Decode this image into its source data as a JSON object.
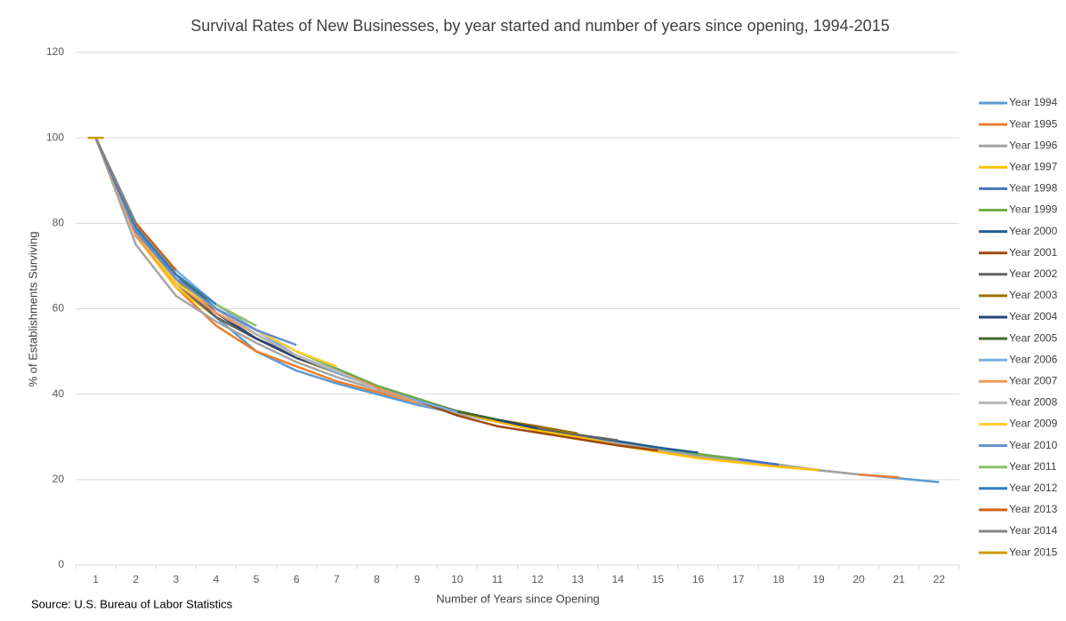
{
  "chart_data": {
    "type": "line",
    "title": "Survival Rates of New Businesses, by year started and number of years since opening, 1994-2015",
    "x_label": "Number of Years since Opening",
    "y_label": "% of Establishments Surviving",
    "source": "Source: U.S. Bureau of Labor Statistics",
    "categories": [
      "1",
      "2",
      "3",
      "4",
      "5",
      "6",
      "7",
      "8",
      "9",
      "10",
      "11",
      "12",
      "13",
      "14",
      "15",
      "16",
      "17",
      "18",
      "19",
      "20",
      "21",
      "22"
    ],
    "ylim": [
      0,
      120
    ],
    "yticks": [
      0,
      20,
      40,
      60,
      80,
      100,
      120
    ],
    "grid": true,
    "legend": "right",
    "series": [
      {
        "name": "Year 1994",
        "color": "#5b9bd5",
        "values": [
          100,
          77,
          66,
          58,
          50,
          45.5,
          42.5,
          40,
          37.5,
          35.5,
          33.5,
          31.5,
          30,
          28.5,
          27,
          25.5,
          24.5,
          23.5,
          22.2,
          21.2,
          20.3,
          19.4
        ]
      },
      {
        "name": "Year 1995",
        "color": "#ed7d31",
        "values": [
          100,
          78,
          65,
          56,
          50,
          46.5,
          43,
          40.5,
          38,
          35.5,
          33.5,
          31.5,
          30,
          28.5,
          27,
          25.5,
          24.5,
          23.5,
          22.2,
          21.2,
          20.5,
          null
        ]
      },
      {
        "name": "Year 1996",
        "color": "#a5a5a5",
        "values": [
          100,
          75,
          63,
          57,
          52,
          47.5,
          44,
          41,
          38,
          35.5,
          33.5,
          31.5,
          30,
          28.5,
          27,
          25.5,
          24.5,
          23.5,
          22.2,
          21.2,
          null,
          null
        ]
      },
      {
        "name": "Year 1997",
        "color": "#ffc000",
        "values": [
          100,
          77,
          65,
          58,
          53,
          48.5,
          45,
          41.5,
          38.5,
          36,
          33.5,
          31.5,
          30,
          28,
          26.5,
          25,
          24,
          23,
          22.2,
          null,
          null,
          null
        ]
      },
      {
        "name": "Year 1998",
        "color": "#4472c4",
        "values": [
          100,
          78,
          66,
          58,
          53,
          49,
          45,
          41.5,
          38.5,
          36,
          34,
          32,
          30.5,
          29,
          27.5,
          26,
          24.8,
          23.5,
          null,
          null,
          null,
          null
        ]
      },
      {
        "name": "Year 1999",
        "color": "#70ad47",
        "values": [
          100,
          79,
          67,
          60,
          55,
          50,
          46,
          42,
          39,
          36,
          34,
          32,
          30.5,
          29,
          27.5,
          26,
          24.8,
          null,
          null,
          null,
          null,
          null
        ]
      },
      {
        "name": "Year 2000",
        "color": "#255e91",
        "values": [
          100,
          79,
          68,
          60,
          54,
          49,
          45.5,
          41.5,
          38.5,
          36,
          34,
          32,
          30.5,
          29,
          27.5,
          26.3,
          null,
          null,
          null,
          null,
          null,
          null
        ]
      },
      {
        "name": "Year 2001",
        "color": "#9e480e",
        "values": [
          100,
          79,
          67,
          58,
          53,
          48.5,
          45,
          41.5,
          38.5,
          35,
          32.5,
          31,
          29.5,
          28,
          26.8,
          null,
          null,
          null,
          null,
          null,
          null,
          null
        ]
      },
      {
        "name": "Year 2002",
        "color": "#636363",
        "values": [
          100,
          78,
          66,
          58,
          53,
          48.5,
          45,
          41.5,
          38.5,
          36,
          34,
          32,
          30.5,
          29.2,
          null,
          null,
          null,
          null,
          null,
          null,
          null,
          null
        ]
      },
      {
        "name": "Year 2003",
        "color": "#997300",
        "values": [
          100,
          79,
          67,
          59,
          53,
          48.5,
          45,
          41.5,
          38.5,
          36,
          34,
          32.5,
          30.8,
          null,
          null,
          null,
          null,
          null,
          null,
          null,
          null,
          null
        ]
      },
      {
        "name": "Year 2004",
        "color": "#264478",
        "values": [
          100,
          80,
          68,
          59,
          53,
          48.5,
          45.5,
          41.5,
          38.5,
          36,
          34,
          32,
          null,
          null,
          null,
          null,
          null,
          null,
          null,
          null,
          null,
          null
        ]
      },
      {
        "name": "Year 2005",
        "color": "#43682b",
        "values": [
          100,
          79,
          68,
          60,
          54,
          49,
          45.5,
          41.5,
          38.5,
          36,
          34,
          null,
          null,
          null,
          null,
          null,
          null,
          null,
          null,
          null,
          null,
          null
        ]
      },
      {
        "name": "Year 2006",
        "color": "#7cafdd",
        "values": [
          100,
          79,
          69,
          61,
          55,
          49,
          45,
          41.5,
          38.5,
          35.8,
          null,
          null,
          null,
          null,
          null,
          null,
          null,
          null,
          null,
          null,
          null,
          null
        ]
      },
      {
        "name": "Year 2007",
        "color": "#f1975a",
        "values": [
          100,
          77,
          66,
          59,
          54,
          49,
          45.5,
          41.5,
          38,
          null,
          null,
          null,
          null,
          null,
          null,
          null,
          null,
          null,
          null,
          null,
          null,
          null
        ]
      },
      {
        "name": "Year 2008",
        "color": "#b7b7b7",
        "values": [
          100,
          78,
          67,
          60,
          54,
          49,
          45.5,
          41,
          null,
          null,
          null,
          null,
          null,
          null,
          null,
          null,
          null,
          null,
          null,
          null,
          null,
          null
        ]
      },
      {
        "name": "Year 2009",
        "color": "#ffcd33",
        "values": [
          100,
          78,
          66,
          60,
          55,
          50,
          46.5,
          null,
          null,
          null,
          null,
          null,
          null,
          null,
          null,
          null,
          null,
          null,
          null,
          null,
          null,
          null
        ]
      },
      {
        "name": "Year 2010",
        "color": "#698ed0",
        "values": [
          100,
          78,
          67,
          60,
          55,
          51.5,
          null,
          null,
          null,
          null,
          null,
          null,
          null,
          null,
          null,
          null,
          null,
          null,
          null,
          null,
          null,
          null
        ]
      },
      {
        "name": "Year 2011",
        "color": "#8cc168",
        "values": [
          100,
          79,
          68,
          61,
          56,
          null,
          null,
          null,
          null,
          null,
          null,
          null,
          null,
          null,
          null,
          null,
          null,
          null,
          null,
          null,
          null,
          null
        ]
      },
      {
        "name": "Year 2012",
        "color": "#327dc2",
        "values": [
          100,
          79,
          68,
          61,
          null,
          null,
          null,
          null,
          null,
          null,
          null,
          null,
          null,
          null,
          null,
          null,
          null,
          null,
          null,
          null,
          null,
          null
        ]
      },
      {
        "name": "Year 2013",
        "color": "#d26012",
        "values": [
          100,
          80,
          69,
          null,
          null,
          null,
          null,
          null,
          null,
          null,
          null,
          null,
          null,
          null,
          null,
          null,
          null,
          null,
          null,
          null,
          null,
          null
        ]
      },
      {
        "name": "Year 2014",
        "color": "#848484",
        "values": [
          100,
          80,
          null,
          null,
          null,
          null,
          null,
          null,
          null,
          null,
          null,
          null,
          null,
          null,
          null,
          null,
          null,
          null,
          null,
          null,
          null,
          null
        ]
      },
      {
        "name": "Year 2015",
        "color": "#cc9a00",
        "values": [
          100,
          null,
          null,
          null,
          null,
          null,
          null,
          null,
          null,
          null,
          null,
          null,
          null,
          null,
          null,
          null,
          null,
          null,
          null,
          null,
          null,
          null
        ]
      }
    ]
  }
}
